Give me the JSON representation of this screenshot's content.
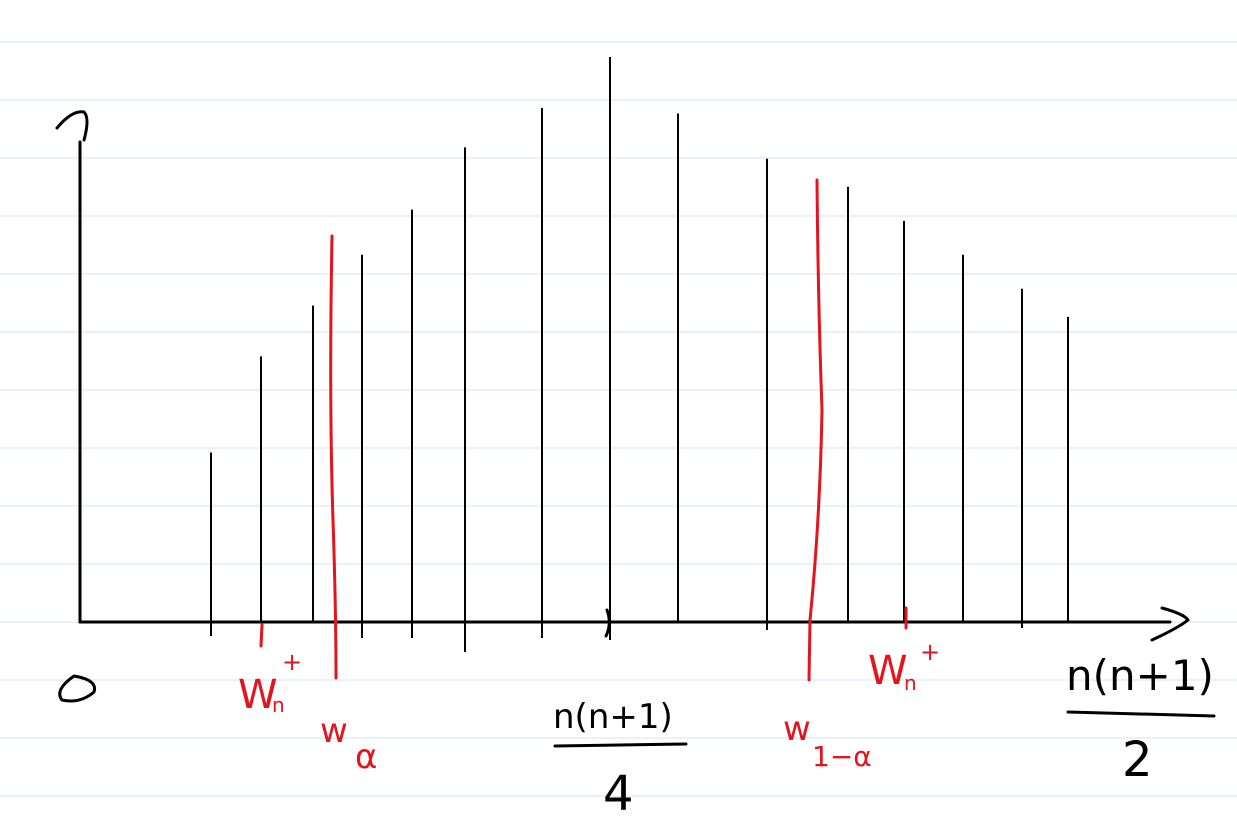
{
  "axis": {
    "origin_label": "0",
    "max_label_numerator": "n(n+1)",
    "max_label_denominator": "2",
    "center_label_numerator": "n(n+1)",
    "center_label_denominator": "4"
  },
  "distribution": {
    "description_type": "symmetric discrete null distribution of Wilcoxon signed-rank statistic",
    "bars": [
      {
        "x_rank": 1,
        "height": 0.3
      },
      {
        "x_rank": 2,
        "height": 0.47
      },
      {
        "x_rank": 3,
        "height": 0.56
      },
      {
        "x_rank": 4,
        "height": 0.65
      },
      {
        "x_rank": 5,
        "height": 0.73
      },
      {
        "x_rank": 6,
        "height": 0.84
      },
      {
        "x_rank": 7,
        "height": 0.91
      },
      {
        "x_rank": 8,
        "height": 1.0
      },
      {
        "x_rank": 9,
        "height": 0.9
      },
      {
        "x_rank": 10,
        "height": 0.82
      },
      {
        "x_rank": 11,
        "height": 0.77
      },
      {
        "x_rank": 12,
        "height": 0.71
      },
      {
        "x_rank": 13,
        "height": 0.65
      },
      {
        "x_rank": 14,
        "height": 0.59
      },
      {
        "x_rank": 15,
        "height": 0.54
      }
    ]
  },
  "annotations": {
    "w_left": "W",
    "w_left_sub": "n",
    "w_left_sup": "+",
    "w_right": "W",
    "w_right_sub": "n",
    "w_right_sup": "+",
    "q_left": "w",
    "q_left_sub": "α",
    "q_right": "w",
    "q_right_sub": "1−α"
  },
  "colors": {
    "ink": "#000000",
    "highlight": "#e3141e",
    "paper_rule": "#d6e6f3"
  }
}
